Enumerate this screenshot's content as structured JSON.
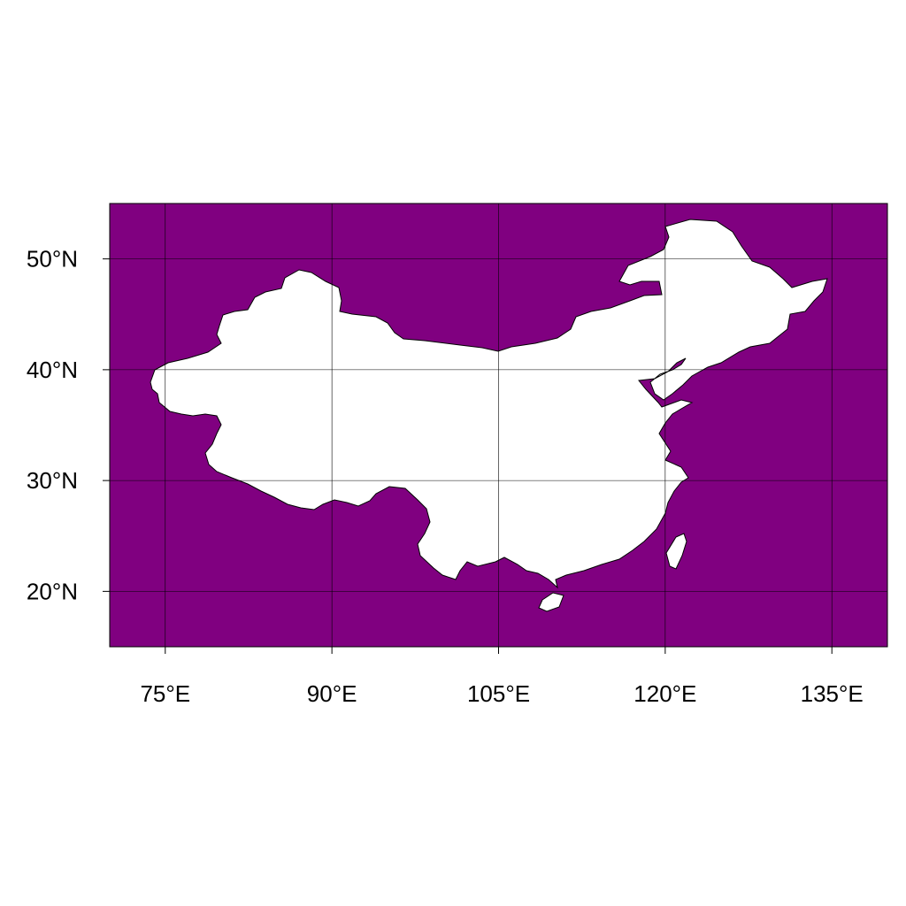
{
  "map": {
    "lon_range": [
      70,
      140
    ],
    "lat_range": [
      15,
      55
    ],
    "ocean_color": "#800080",
    "land_color": "#ffffff",
    "border_color": "#000000",
    "grid_color": "#000000",
    "lon_ticks": [
      75,
      90,
      105,
      120,
      135
    ],
    "lat_ticks": [
      20,
      30,
      40,
      50
    ],
    "lon_tick_labels": [
      "75°E",
      "90°E",
      "105°E",
      "120°E",
      "135°E"
    ],
    "lat_tick_labels": [
      "20°N",
      "30°N",
      "40°N",
      "50°N"
    ],
    "grid_lines": true,
    "region": "China"
  }
}
